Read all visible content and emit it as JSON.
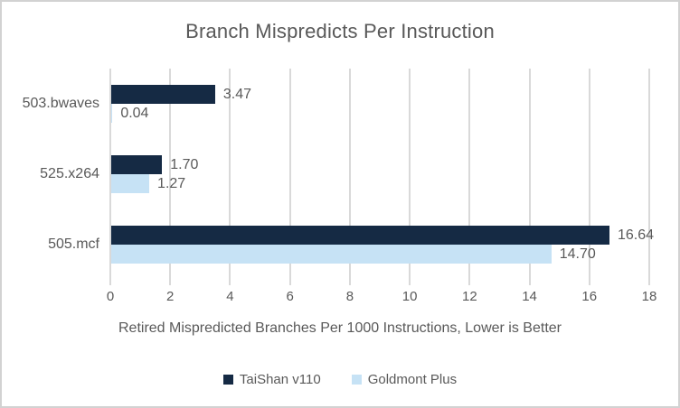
{
  "chart_data": {
    "type": "bar",
    "orientation": "horizontal",
    "title": "Branch Mispredicts Per Instruction",
    "xlabel": "Retired Mispredicted Branches Per 1000 Instructions, Lower is Better",
    "categories": [
      "503.bwaves",
      "525.x264",
      "505.mcf"
    ],
    "series": [
      {
        "name": "TaiShan v110",
        "color": "#152a44",
        "values": [
          3.47,
          1.7,
          16.64
        ],
        "labels": [
          "3.47",
          "1.70",
          "16.64"
        ]
      },
      {
        "name": "Goldmont Plus",
        "color": "#c6e2f5",
        "values": [
          0.04,
          1.27,
          14.7
        ],
        "labels": [
          "0.04",
          "1.27",
          "14.70"
        ]
      }
    ],
    "x_axis": {
      "min": 0,
      "max": 18,
      "tick_step": 2,
      "ticks": [
        0,
        2,
        4,
        6,
        8,
        10,
        12,
        14,
        16,
        18
      ],
      "tick_labels": [
        "0",
        "2",
        "4",
        "6",
        "8",
        "10",
        "12",
        "14",
        "16",
        "18"
      ]
    },
    "grid": true,
    "legend_position": "bottom",
    "value_labels_shown": true
  },
  "styles": {
    "text_color": "#595959",
    "gridline_color": "#d9d9d9",
    "border_color": "#d2d2d2",
    "background_color": "#ffffff"
  }
}
